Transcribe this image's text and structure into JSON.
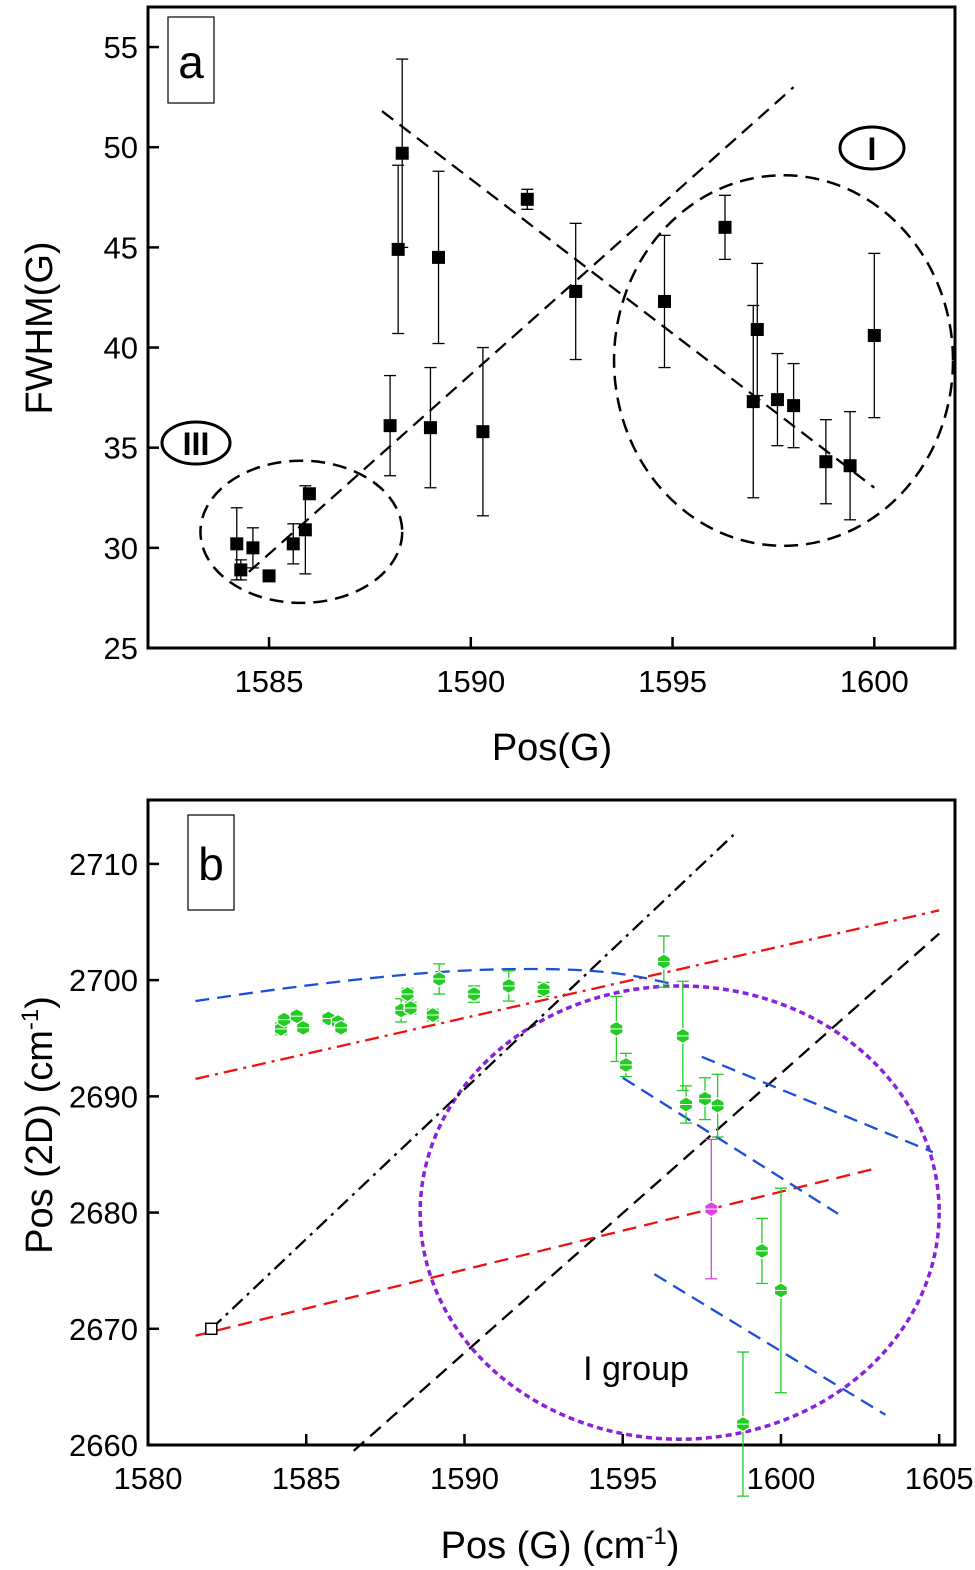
{
  "chart_data": [
    {
      "panel": "a",
      "type": "scatter",
      "title": "",
      "xlabel": "Pos(G)",
      "ylabel": "FWHM(G)",
      "xlim": [
        1582,
        1602
      ],
      "ylim": [
        25,
        57
      ],
      "xticks": [
        1585,
        1590,
        1595,
        1600
      ],
      "yticks": [
        25,
        30,
        35,
        40,
        45,
        50,
        55
      ],
      "grid": false,
      "legend": "none",
      "marker": "filled-square",
      "color": "#000000",
      "annotations": [
        "III",
        "I"
      ],
      "points": [
        {
          "x": 1584.2,
          "y": 30.2,
          "err": 1.8
        },
        {
          "x": 1584.3,
          "y": 28.9,
          "err": 0.5
        },
        {
          "x": 1584.6,
          "y": 30.0,
          "err": 1.0
        },
        {
          "x": 1585.0,
          "y": 28.6,
          "err": 0.1
        },
        {
          "x": 1585.6,
          "y": 30.2,
          "err": 1.0
        },
        {
          "x": 1585.9,
          "y": 30.9,
          "err": 2.2
        },
        {
          "x": 1586.0,
          "y": 32.7,
          "err": 0.1
        },
        {
          "x": 1588.0,
          "y": 36.1,
          "err": 2.5
        },
        {
          "x": 1588.2,
          "y": 44.9,
          "err": 4.2
        },
        {
          "x": 1588.3,
          "y": 49.7,
          "err": 4.7
        },
        {
          "x": 1589.0,
          "y": 36.0,
          "err": 3.0
        },
        {
          "x": 1589.2,
          "y": 44.5,
          "err": 4.3
        },
        {
          "x": 1590.3,
          "y": 35.8,
          "err": 4.2
        },
        {
          "x": 1591.4,
          "y": 47.4,
          "err": 0.5
        },
        {
          "x": 1592.6,
          "y": 42.8,
          "err": 3.4
        },
        {
          "x": 1594.8,
          "y": 42.3,
          "err": 3.3
        },
        {
          "x": 1596.3,
          "y": 46.0,
          "err": 1.6
        },
        {
          "x": 1597.0,
          "y": 37.3,
          "err": 4.8
        },
        {
          "x": 1597.1,
          "y": 40.9,
          "err": 3.3
        },
        {
          "x": 1597.6,
          "y": 37.4,
          "err": 2.3
        },
        {
          "x": 1598.0,
          "y": 37.1,
          "err": 2.1
        },
        {
          "x": 1598.8,
          "y": 34.3,
          "err": 2.1
        },
        {
          "x": 1599.4,
          "y": 34.1,
          "err": 2.7
        },
        {
          "x": 1600.0,
          "y": 40.6,
          "err": 4.1
        }
      ],
      "fit_lines": [
        {
          "style": "dashed",
          "color": "#000000",
          "from": [
            1584.5,
            28.8
          ],
          "to": [
            1598.0,
            53.0
          ]
        },
        {
          "style": "dashed",
          "color": "#000000",
          "from": [
            1587.8,
            51.8
          ],
          "to": [
            1600.0,
            33.0
          ]
        }
      ],
      "ellipses": [
        {
          "style": "dashed",
          "color": "#000000",
          "cx": 1585.8,
          "cy": 30.8,
          "rx": 2.5,
          "ry": 3.55
        },
        {
          "style": "dashed",
          "color": "#000000",
          "cx": 1597.75,
          "cy": 39.35,
          "rx": 4.2,
          "ry": 9.25
        }
      ]
    },
    {
      "panel": "b",
      "type": "scatter",
      "title": "",
      "xlabel": "Pos (G) (cm",
      "xlabel_sup": "-1",
      "xlabel_end": ")",
      "ylabel": "Pos (2D) (cm",
      "ylabel_sup": "-1",
      "ylabel_end": ")",
      "xlim": [
        1580,
        1605.5
      ],
      "ylim": [
        2660,
        2715.5
      ],
      "xticks": [
        1580,
        1585,
        1590,
        1595,
        1600,
        1605
      ],
      "yticks": [
        2660,
        2670,
        2680,
        2690,
        2700,
        2710
      ],
      "grid": false,
      "legend": "none",
      "annotations": [
        "I group"
      ],
      "series": [
        {
          "marker": "hexagon",
          "color": "#22cc22",
          "points": [
            {
              "x": 1584.2,
              "y": 2695.8,
              "err": 0.5
            },
            {
              "x": 1584.3,
              "y": 2696.6,
              "err": 0.4
            },
            {
              "x": 1584.7,
              "y": 2696.9,
              "err": 0.4
            },
            {
              "x": 1584.9,
              "y": 2695.9,
              "err": 0.4
            },
            {
              "x": 1585.7,
              "y": 2696.7,
              "err": 0.4
            },
            {
              "x": 1586.0,
              "y": 2696.4,
              "err": 0.4
            },
            {
              "x": 1586.1,
              "y": 2695.9,
              "err": 0.4
            },
            {
              "x": 1588.0,
              "y": 2697.4,
              "err": 1.0
            },
            {
              "x": 1588.2,
              "y": 2698.8,
              "err": 0.5
            },
            {
              "x": 1588.3,
              "y": 2697.6,
              "err": 0.5
            },
            {
              "x": 1589.0,
              "y": 2697.0,
              "err": 0.5
            },
            {
              "x": 1589.2,
              "y": 2700.1,
              "err": 1.3
            },
            {
              "x": 1590.3,
              "y": 2698.8,
              "err": 0.7
            },
            {
              "x": 1591.4,
              "y": 2699.5,
              "err": 1.3
            },
            {
              "x": 1592.5,
              "y": 2699.2,
              "err": 0.6
            },
            {
              "x": 1594.8,
              "y": 2695.8,
              "err": 2.8
            },
            {
              "x": 1595.1,
              "y": 2692.7,
              "err": 1.0
            },
            {
              "x": 1596.3,
              "y": 2701.6,
              "err": 2.2
            },
            {
              "x": 1596.9,
              "y": 2695.2,
              "err": 4.7
            },
            {
              "x": 1597.0,
              "y": 2689.3,
              "err": 1.6
            },
            {
              "x": 1597.6,
              "y": 2689.8,
              "err": 1.8
            },
            {
              "x": 1598.0,
              "y": 2689.2,
              "err": 2.7
            },
            {
              "x": 1598.8,
              "y": 2661.8,
              "err": 6.2
            },
            {
              "x": 1599.4,
              "y": 2676.7,
              "err": 2.8
            },
            {
              "x": 1600.0,
              "y": 2673.3,
              "err": 8.8
            }
          ]
        },
        {
          "marker": "hexagon",
          "color": "#dd44dd",
          "points": [
            {
              "x": 1597.8,
              "y": 2680.3,
              "err": 6.0
            }
          ]
        },
        {
          "marker": "open-square",
          "color": "#000000",
          "points": [
            {
              "x": 1582.0,
              "y": 2670.0,
              "err": 0
            }
          ]
        }
      ],
      "fit_lines": [
        {
          "style": "dash-dot",
          "color": "#000000",
          "from": [
            1582.0,
            2670.0
          ],
          "to": [
            1598.5,
            2712.5
          ]
        },
        {
          "style": "dashed",
          "color": "#000000",
          "from": [
            1586.5,
            2659.5
          ],
          "to": [
            1605.0,
            2704.0
          ]
        },
        {
          "style": "dash-dot",
          "color": "#ee1111",
          "from": [
            1581.5,
            2691.5
          ],
          "to": [
            1605.0,
            2706.0
          ]
        },
        {
          "style": "dashed",
          "color": "#ee1111",
          "from": [
            1581.5,
            2669.4
          ],
          "to": [
            1603.0,
            2683.8
          ]
        },
        {
          "style": "dashed",
          "color": "#1a4fd8",
          "from": [
            1597.5,
            2693.4
          ],
          "to": [
            1604.8,
            2685.2
          ]
        },
        {
          "style": "dashed",
          "color": "#1a4fd8",
          "from": [
            1595.0,
            2691.6
          ],
          "to": [
            1601.8,
            2679.9
          ]
        },
        {
          "style": "dashed",
          "color": "#1a4fd8",
          "from": [
            1596.0,
            2674.7
          ],
          "to": [
            1603.3,
            2662.6
          ]
        }
      ],
      "curves": [
        {
          "style": "dashed",
          "color": "#1a4fd8",
          "points": [
            [
              1581.5,
              2698.2
            ],
            [
              1584.0,
              2699.2
            ],
            [
              1587.0,
              2700.2
            ],
            [
              1590.0,
              2700.9
            ],
            [
              1593.0,
              2701.0
            ],
            [
              1595.0,
              2700.6
            ],
            [
              1596.7,
              2699.6
            ]
          ]
        }
      ],
      "ellipses": [
        {
          "style": "short-dashed",
          "color": "#8822dd",
          "cx": 1596.8,
          "cy": 2680.0,
          "rx": 8.2,
          "ry": 19.5
        }
      ]
    }
  ]
}
